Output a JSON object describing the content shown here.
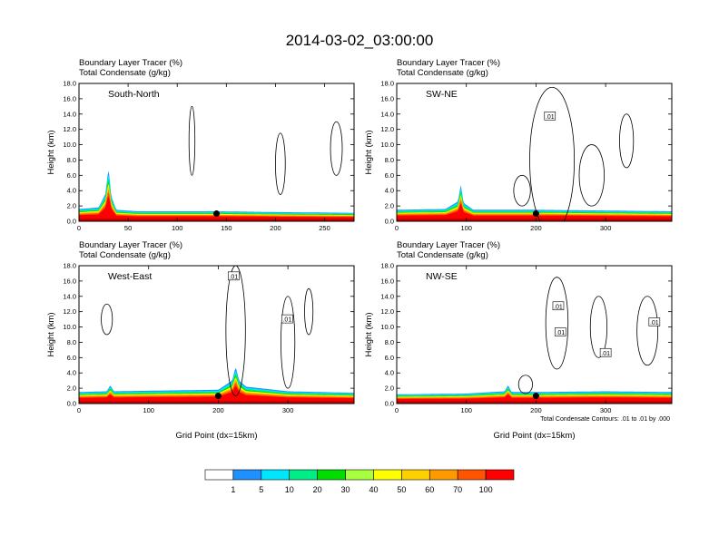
{
  "figure": {
    "title": "2014-03-02_03:00:00",
    "contour_note": "Total Condensate Contours: .01 to .01 by .000"
  },
  "chart_data": [
    {
      "type": "area",
      "panel": "South-North",
      "subtitle_left": "Boundary Layer Tracer    (%)",
      "subtitle_left2": "Total Condensate    (g/kg)",
      "ylabel": "Height (km)",
      "xlabel": "",
      "xlim": [
        0,
        280
      ],
      "ylim": [
        0,
        18
      ],
      "xticks": [
        0,
        50,
        100,
        150,
        200,
        250
      ],
      "yticks": [
        0,
        2,
        4,
        6,
        8,
        10,
        12,
        14,
        16,
        18
      ],
      "ytick_labels": [
        "0.0",
        "2.0",
        "4.0",
        "6.0",
        "8.0",
        "10.0",
        "12.0",
        "14.0",
        "16.0",
        "18.0"
      ],
      "bl_top_km": [
        [
          0,
          1.6
        ],
        [
          20,
          1.8
        ],
        [
          27,
          3.6
        ],
        [
          30,
          7.0
        ],
        [
          33,
          3.2
        ],
        [
          38,
          1.5
        ],
        [
          60,
          1.3
        ],
        [
          140,
          1.3
        ],
        [
          200,
          1.2
        ],
        [
          280,
          1.1
        ]
      ],
      "marker": {
        "x": 140,
        "y": 1.0
      },
      "contour_labels": []
    },
    {
      "type": "area",
      "panel": "SW-NE",
      "subtitle_left": "Boundary Layer Tracer    (%)",
      "subtitle_left2": "Total Condensate    (g/kg)",
      "ylabel": "Height (km)",
      "xlabel": "",
      "xlim": [
        0,
        395
      ],
      "ylim": [
        0,
        18
      ],
      "xticks": [
        0,
        100,
        200,
        300
      ],
      "yticks": [
        0,
        2,
        4,
        6,
        8,
        10,
        12,
        14,
        16,
        18
      ],
      "ytick_labels": [
        "0.0",
        "2.0",
        "4.0",
        "6.0",
        "8.0",
        "10.0",
        "12.0",
        "14.0",
        "16.0",
        "18.0"
      ],
      "bl_top_km": [
        [
          0,
          1.5
        ],
        [
          70,
          1.6
        ],
        [
          88,
          2.6
        ],
        [
          92,
          4.8
        ],
        [
          96,
          2.4
        ],
        [
          110,
          1.5
        ],
        [
          200,
          1.5
        ],
        [
          300,
          1.4
        ],
        [
          395,
          1.3
        ]
      ],
      "marker": {
        "x": 200,
        "y": 1.0
      },
      "contour_labels": [
        {
          "text": ".01",
          "x": 220,
          "y": 13.7
        }
      ]
    },
    {
      "type": "area",
      "panel": "West-East",
      "subtitle_left": "Boundary Layer Tracer    (%)",
      "subtitle_left2": "Total Condensate    (g/kg)",
      "ylabel": "Height (km)",
      "xlabel": "Grid Point (dx=15km)",
      "xlim": [
        0,
        395
      ],
      "ylim": [
        0,
        18
      ],
      "xticks": [
        0,
        100,
        200,
        300
      ],
      "yticks": [
        0,
        2,
        4,
        6,
        8,
        10,
        12,
        14,
        16,
        18
      ],
      "ytick_labels": [
        "0.0",
        "2.0",
        "4.0",
        "6.0",
        "8.0",
        "10.0",
        "12.0",
        "14.0",
        "16.0",
        "18.0"
      ],
      "bl_top_km": [
        [
          0,
          1.5
        ],
        [
          40,
          1.6
        ],
        [
          45,
          2.4
        ],
        [
          50,
          1.6
        ],
        [
          120,
          1.7
        ],
        [
          200,
          1.8
        ],
        [
          220,
          3.0
        ],
        [
          225,
          4.8
        ],
        [
          230,
          3.0
        ],
        [
          240,
          2.2
        ],
        [
          300,
          1.6
        ],
        [
          395,
          1.4
        ]
      ],
      "marker": {
        "x": 200,
        "y": 1.0
      },
      "contour_labels": [
        {
          "text": ".01",
          "x": 222,
          "y": 16.6
        },
        {
          "text": ".01",
          "x": 299,
          "y": 11.0
        }
      ]
    },
    {
      "type": "area",
      "panel": "NW-SE",
      "subtitle_left": "Boundary Layer Tracer    (%)",
      "subtitle_left2": "Total Condensate    (g/kg)",
      "ylabel": "Height (km)",
      "xlabel": "Grid Point (dx=15km)",
      "xlim": [
        0,
        395
      ],
      "ylim": [
        0,
        18
      ],
      "xticks": [
        0,
        100,
        200,
        300
      ],
      "yticks": [
        0,
        2,
        4,
        6,
        8,
        10,
        12,
        14,
        16,
        18
      ],
      "ytick_labels": [
        "0.0",
        "2.0",
        "4.0",
        "6.0",
        "8.0",
        "10.0",
        "12.0",
        "14.0",
        "16.0",
        "18.0"
      ],
      "bl_top_km": [
        [
          0,
          1.2
        ],
        [
          100,
          1.3
        ],
        [
          155,
          1.6
        ],
        [
          160,
          2.4
        ],
        [
          165,
          1.5
        ],
        [
          200,
          1.5
        ],
        [
          300,
          1.6
        ],
        [
          395,
          1.5
        ]
      ],
      "marker": {
        "x": 200,
        "y": 1.0
      },
      "contour_labels": [
        {
          "text": ".01",
          "x": 232,
          "y": 12.7
        },
        {
          "text": ".01",
          "x": 235,
          "y": 9.3
        },
        {
          "text": ".01",
          "x": 300,
          "y": 6.6
        },
        {
          "text": ".01",
          "x": 370,
          "y": 10.6
        }
      ]
    }
  ],
  "colorbar": {
    "labels": [
      "1",
      "5",
      "10",
      "20",
      "30",
      "40",
      "50",
      "60",
      "70",
      "100"
    ],
    "colors": [
      "#ffffff",
      "#1e90ff",
      "#00e6ff",
      "#00ee88",
      "#00dd00",
      "#a8ff3e",
      "#ffff00",
      "#ffd000",
      "#ff9900",
      "#ff5500",
      "#ff0000"
    ]
  }
}
